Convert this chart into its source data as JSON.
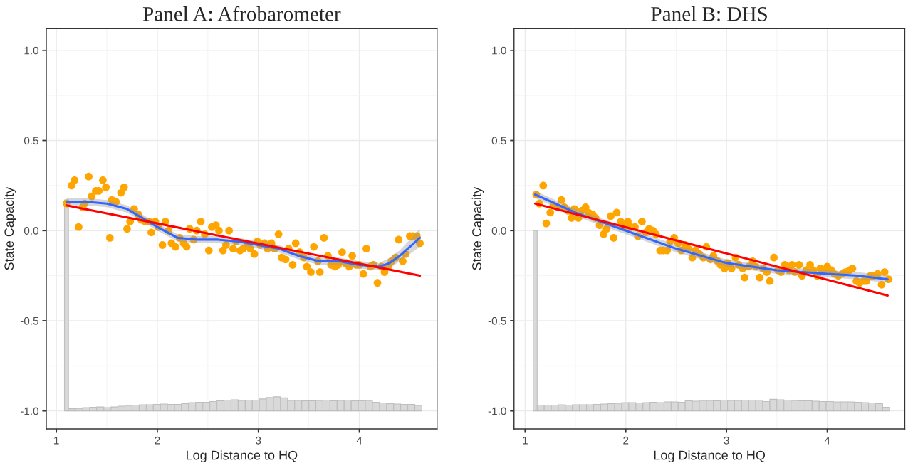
{
  "chart_data": [
    {
      "type": "scatter",
      "title": "Panel A: Afrobarometer",
      "xlabel": "Log Distance to HQ",
      "ylabel": "State Capacity",
      "xlim": [
        0.9,
        4.77
      ],
      "ylim": [
        -1.1,
        1.12
      ],
      "xticks": [
        1,
        2,
        3,
        4
      ],
      "yticks": [
        {
          "value": -1,
          "label": "-1.0"
        },
        {
          "value": -0.5,
          "label": "-0.5"
        },
        {
          "value": 0,
          "label": "0.0"
        },
        {
          "value": 0.5,
          "label": "0.5"
        },
        {
          "value": 1,
          "label": "1.0"
        }
      ],
      "grid": true,
      "legend": false,
      "series": [
        {
          "type": "histogram",
          "color": "#d9d9d9",
          "bins": [
            1.08,
            1.12,
            1.19,
            1.26,
            1.33,
            1.4,
            1.47,
            1.54,
            1.61,
            1.68,
            1.75,
            1.82,
            1.89,
            1.96,
            2.03,
            2.1,
            2.17,
            2.24,
            2.31,
            2.38,
            2.45,
            2.52,
            2.59,
            2.66,
            2.73,
            2.8,
            2.87,
            2.94,
            3.01,
            3.08,
            3.15,
            3.22,
            3.29,
            3.36,
            3.43,
            3.5,
            3.57,
            3.64,
            3.71,
            3.78,
            3.85,
            3.92,
            3.99,
            4.06,
            4.13,
            4.2,
            4.27,
            4.34,
            4.41,
            4.48,
            4.55,
            4.62
          ],
          "values": [
            1.17,
            0.012,
            0.014,
            0.018,
            0.02,
            0.022,
            0.018,
            0.022,
            0.026,
            0.03,
            0.032,
            0.034,
            0.034,
            0.036,
            0.038,
            0.036,
            0.036,
            0.04,
            0.046,
            0.048,
            0.048,
            0.052,
            0.056,
            0.06,
            0.062,
            0.058,
            0.06,
            0.06,
            0.066,
            0.074,
            0.078,
            0.072,
            0.058,
            0.058,
            0.056,
            0.056,
            0.058,
            0.06,
            0.056,
            0.058,
            0.06,
            0.056,
            0.056,
            0.058,
            0.048,
            0.044,
            0.04,
            0.038,
            0.036,
            0.036,
            0.03
          ],
          "base": [
            -1,
            -1,
            -1,
            -1,
            -1,
            -1,
            -1,
            -1,
            -1,
            -1,
            -1,
            -1,
            -1,
            -1,
            -1,
            -1,
            -1,
            -1,
            -1,
            -1,
            -1,
            -1,
            -1,
            -1,
            -1,
            -1,
            -1,
            -1,
            -1,
            -1,
            -1,
            -1,
            -1,
            -1,
            -1,
            -1,
            -1,
            -1,
            -1,
            -1,
            -1,
            -1,
            -1,
            -1,
            -1,
            -1,
            -1,
            -1,
            -1,
            -1,
            -1
          ]
        },
        {
          "marker": "circle",
          "color": "#ffa500",
          "x": [
            1.1,
            1.15,
            1.18,
            1.22,
            1.26,
            1.28,
            1.32,
            1.35,
            1.39,
            1.42,
            1.46,
            1.49,
            1.53,
            1.55,
            1.59,
            1.64,
            1.67,
            1.7,
            1.73,
            1.77,
            1.81,
            1.84,
            1.88,
            1.92,
            1.94,
            1.98,
            2.01,
            2.05,
            2.08,
            2.11,
            2.14,
            2.18,
            2.22,
            2.26,
            2.29,
            2.32,
            2.36,
            2.39,
            2.43,
            2.47,
            2.51,
            2.54,
            2.58,
            2.61,
            2.65,
            2.68,
            2.71,
            2.75,
            2.78,
            2.82,
            2.85,
            2.89,
            2.92,
            2.96,
            2.99,
            3.02,
            3.06,
            3.09,
            3.13,
            3.16,
            3.2,
            3.23,
            3.27,
            3.3,
            3.34,
            3.37,
            3.41,
            3.45,
            3.48,
            3.52,
            3.55,
            3.59,
            3.61,
            3.65,
            3.69,
            3.72,
            3.76,
            3.79,
            3.83,
            3.86,
            3.9,
            3.93,
            3.97,
            4.0,
            4.04,
            4.07,
            4.11,
            4.14,
            4.18,
            4.22,
            4.25,
            4.29,
            4.32,
            4.36,
            4.39,
            4.43,
            4.46,
            4.5,
            4.53,
            4.57,
            4.6
          ],
          "values": [
            0.15,
            0.25,
            0.28,
            0.02,
            0.13,
            0.15,
            0.3,
            0.19,
            0.22,
            0.22,
            0.28,
            0.24,
            -0.04,
            0.17,
            0.16,
            0.21,
            0.24,
            0.01,
            0.05,
            0.12,
            0.09,
            0.06,
            0.05,
            0.05,
            -0.01,
            0.05,
            0.02,
            -0.08,
            0.05,
            0.0,
            -0.07,
            -0.09,
            -0.04,
            -0.07,
            -0.09,
            0.01,
            -0.05,
            0.0,
            0.05,
            -0.02,
            -0.11,
            0.02,
            0.03,
            0.0,
            -0.11,
            -0.08,
            0.0,
            -0.1,
            -0.06,
            -0.11,
            -0.1,
            -0.08,
            -0.1,
            -0.13,
            -0.06,
            -0.08,
            -0.07,
            -0.1,
            -0.07,
            -0.1,
            -0.02,
            -0.15,
            -0.16,
            -0.1,
            -0.19,
            -0.07,
            -0.12,
            -0.15,
            -0.2,
            -0.23,
            -0.09,
            -0.17,
            -0.23,
            -0.04,
            -0.14,
            -0.19,
            -0.2,
            -0.19,
            -0.12,
            -0.18,
            -0.2,
            -0.14,
            -0.19,
            -0.19,
            -0.24,
            -0.1,
            -0.2,
            -0.19,
            -0.29,
            -0.2,
            -0.23,
            -0.2,
            -0.17,
            -0.15,
            -0.05,
            -0.17,
            -0.13,
            -0.03,
            -0.03,
            -0.03,
            -0.07
          ]
        },
        {
          "type": "line",
          "color": "#3366ff",
          "x": [
            1.1,
            1.3,
            1.5,
            1.7,
            1.85,
            2.0,
            2.2,
            2.4,
            2.6,
            2.8,
            3.0,
            3.2,
            3.4,
            3.6,
            3.8,
            4.0,
            4.2,
            4.3,
            4.4,
            4.5,
            4.6
          ],
          "values": [
            0.16,
            0.16,
            0.15,
            0.12,
            0.07,
            0.02,
            -0.04,
            -0.05,
            -0.05,
            -0.06,
            -0.08,
            -0.1,
            -0.14,
            -0.17,
            -0.17,
            -0.19,
            -0.2,
            -0.18,
            -0.14,
            -0.09,
            -0.04
          ],
          "lower": [
            0.14,
            0.14,
            0.13,
            0.1,
            0.05,
            0.0,
            -0.06,
            -0.07,
            -0.07,
            -0.08,
            -0.1,
            -0.12,
            -0.16,
            -0.19,
            -0.19,
            -0.21,
            -0.22,
            -0.21,
            -0.17,
            -0.13,
            -0.09
          ],
          "upper": [
            0.18,
            0.18,
            0.17,
            0.14,
            0.09,
            0.04,
            -0.02,
            -0.03,
            -0.03,
            -0.04,
            -0.06,
            -0.08,
            -0.12,
            -0.15,
            -0.15,
            -0.17,
            -0.18,
            -0.15,
            -0.11,
            -0.05,
            0.01
          ]
        },
        {
          "type": "line",
          "color": "#ff0000",
          "x": [
            1.1,
            4.6
          ],
          "values": [
            0.14,
            -0.25
          ]
        }
      ]
    },
    {
      "type": "scatter",
      "title": "Panel B: DHS",
      "xlabel": "Log Distance to HQ",
      "ylabel": "State Capacity",
      "xlim": [
        0.89,
        4.77
      ],
      "ylim": [
        -1.1,
        1.12
      ],
      "xticks": [
        1,
        2,
        3,
        4
      ],
      "yticks": [
        {
          "value": -1,
          "label": "-1.0"
        },
        {
          "value": -0.5,
          "label": "-0.5"
        },
        {
          "value": 0,
          "label": "0.0"
        },
        {
          "value": 0.5,
          "label": "0.5"
        },
        {
          "value": 1,
          "label": "1.0"
        }
      ],
      "grid": true,
      "legend": false,
      "series": [
        {
          "type": "histogram",
          "color": "#d9d9d9",
          "bins": [
            1.08,
            1.12,
            1.19,
            1.26,
            1.33,
            1.4,
            1.47,
            1.54,
            1.61,
            1.68,
            1.75,
            1.82,
            1.89,
            1.96,
            2.03,
            2.1,
            2.17,
            2.24,
            2.31,
            2.38,
            2.45,
            2.52,
            2.59,
            2.66,
            2.73,
            2.8,
            2.87,
            2.94,
            3.01,
            3.08,
            3.15,
            3.22,
            3.29,
            3.36,
            3.43,
            3.5,
            3.57,
            3.64,
            3.71,
            3.78,
            3.85,
            3.92,
            3.99,
            4.06,
            4.13,
            4.2,
            4.27,
            4.34,
            4.41,
            4.48,
            4.55,
            4.62
          ],
          "values": [
            1.0,
            0.032,
            0.032,
            0.032,
            0.034,
            0.032,
            0.034,
            0.034,
            0.034,
            0.036,
            0.038,
            0.04,
            0.042,
            0.046,
            0.046,
            0.044,
            0.046,
            0.048,
            0.046,
            0.05,
            0.05,
            0.048,
            0.056,
            0.054,
            0.058,
            0.058,
            0.056,
            0.06,
            0.058,
            0.058,
            0.06,
            0.06,
            0.06,
            0.052,
            0.064,
            0.062,
            0.06,
            0.058,
            0.056,
            0.056,
            0.054,
            0.052,
            0.052,
            0.05,
            0.05,
            0.05,
            0.048,
            0.046,
            0.044,
            0.04,
            0.02
          ],
          "base": [
            -1,
            -1,
            -1,
            -1,
            -1,
            -1,
            -1,
            -1,
            -1,
            -1,
            -1,
            -1,
            -1,
            -1,
            -1,
            -1,
            -1,
            -1,
            -1,
            -1,
            -1,
            -1,
            -1,
            -1,
            -1,
            -1,
            -1,
            -1,
            -1,
            -1,
            -1,
            -1,
            -1,
            -1,
            -1,
            -1,
            -1,
            -1,
            -1,
            -1,
            -1,
            -1,
            -1,
            -1,
            -1,
            -1,
            -1,
            -1,
            -1,
            -1,
            -1
          ]
        },
        {
          "marker": "circle",
          "color": "#ffa500",
          "x": [
            1.11,
            1.14,
            1.18,
            1.21,
            1.25,
            1.28,
            1.32,
            1.36,
            1.39,
            1.43,
            1.46,
            1.49,
            1.53,
            1.56,
            1.6,
            1.63,
            1.67,
            1.7,
            1.74,
            1.78,
            1.81,
            1.85,
            1.88,
            1.91,
            1.95,
            1.98,
            2.02,
            2.05,
            2.09,
            2.12,
            2.16,
            2.2,
            2.23,
            2.27,
            2.3,
            2.34,
            2.37,
            2.41,
            2.44,
            2.48,
            2.52,
            2.55,
            2.59,
            2.62,
            2.66,
            2.69,
            2.73,
            2.77,
            2.8,
            2.84,
            2.87,
            2.91,
            2.94,
            2.98,
            3.01,
            3.05,
            3.09,
            3.12,
            3.16,
            3.18,
            3.22,
            3.26,
            3.29,
            3.33,
            3.36,
            3.4,
            3.43,
            3.47,
            3.51,
            3.54,
            3.58,
            3.62,
            3.65,
            3.68,
            3.72,
            3.75,
            3.79,
            3.83,
            3.86,
            3.9,
            3.93,
            3.97,
            4.0,
            4.04,
            4.07,
            4.11,
            4.15,
            4.18,
            4.22,
            4.25,
            4.29,
            4.32,
            4.36,
            4.39,
            4.43,
            4.46,
            4.5,
            4.54,
            4.57,
            4.61
          ],
          "values": [
            0.2,
            0.15,
            0.25,
            0.04,
            0.1,
            0.14,
            0.13,
            0.17,
            0.13,
            0.11,
            0.07,
            0.12,
            0.07,
            0.11,
            0.13,
            0.1,
            0.09,
            0.07,
            0.03,
            -0.02,
            0.01,
            0.08,
            -0.04,
            0.1,
            0.05,
            0.02,
            0.05,
            0.02,
            0.02,
            -0.03,
            0.05,
            -0.01,
            0.01,
            0.0,
            -0.02,
            -0.11,
            -0.11,
            -0.11,
            -0.06,
            -0.04,
            -0.07,
            -0.11,
            -0.08,
            -0.1,
            -0.15,
            -0.11,
            -0.13,
            -0.15,
            -0.09,
            -0.16,
            -0.14,
            -0.17,
            -0.19,
            -0.21,
            -0.18,
            -0.21,
            -0.15,
            -0.19,
            -0.21,
            -0.26,
            -0.2,
            -0.17,
            -0.2,
            -0.26,
            -0.21,
            -0.23,
            -0.28,
            -0.15,
            -0.22,
            -0.23,
            -0.19,
            -0.22,
            -0.19,
            -0.23,
            -0.19,
            -0.25,
            -0.22,
            -0.19,
            -0.22,
            -0.25,
            -0.21,
            -0.22,
            -0.2,
            -0.22,
            -0.24,
            -0.25,
            -0.24,
            -0.23,
            -0.22,
            -0.21,
            -0.28,
            -0.29,
            -0.28,
            -0.28,
            -0.25,
            -0.25,
            -0.24,
            -0.3,
            -0.23,
            -0.27
          ]
        },
        {
          "type": "line",
          "color": "#3366ff",
          "x": [
            1.1,
            1.5,
            2.0,
            2.5,
            3.0,
            3.5,
            4.0,
            4.3,
            4.6
          ],
          "values": [
            0.2,
            0.1,
            0.0,
            -0.1,
            -0.18,
            -0.22,
            -0.24,
            -0.25,
            -0.27
          ],
          "lower": [
            0.18,
            0.08,
            -0.02,
            -0.12,
            -0.2,
            -0.24,
            -0.26,
            -0.27,
            -0.29
          ],
          "upper": [
            0.22,
            0.12,
            0.02,
            -0.08,
            -0.16,
            -0.2,
            -0.22,
            -0.23,
            -0.25
          ]
        },
        {
          "type": "line",
          "color": "#ff0000",
          "x": [
            1.1,
            4.6
          ],
          "values": [
            0.15,
            -0.36
          ]
        }
      ]
    }
  ]
}
